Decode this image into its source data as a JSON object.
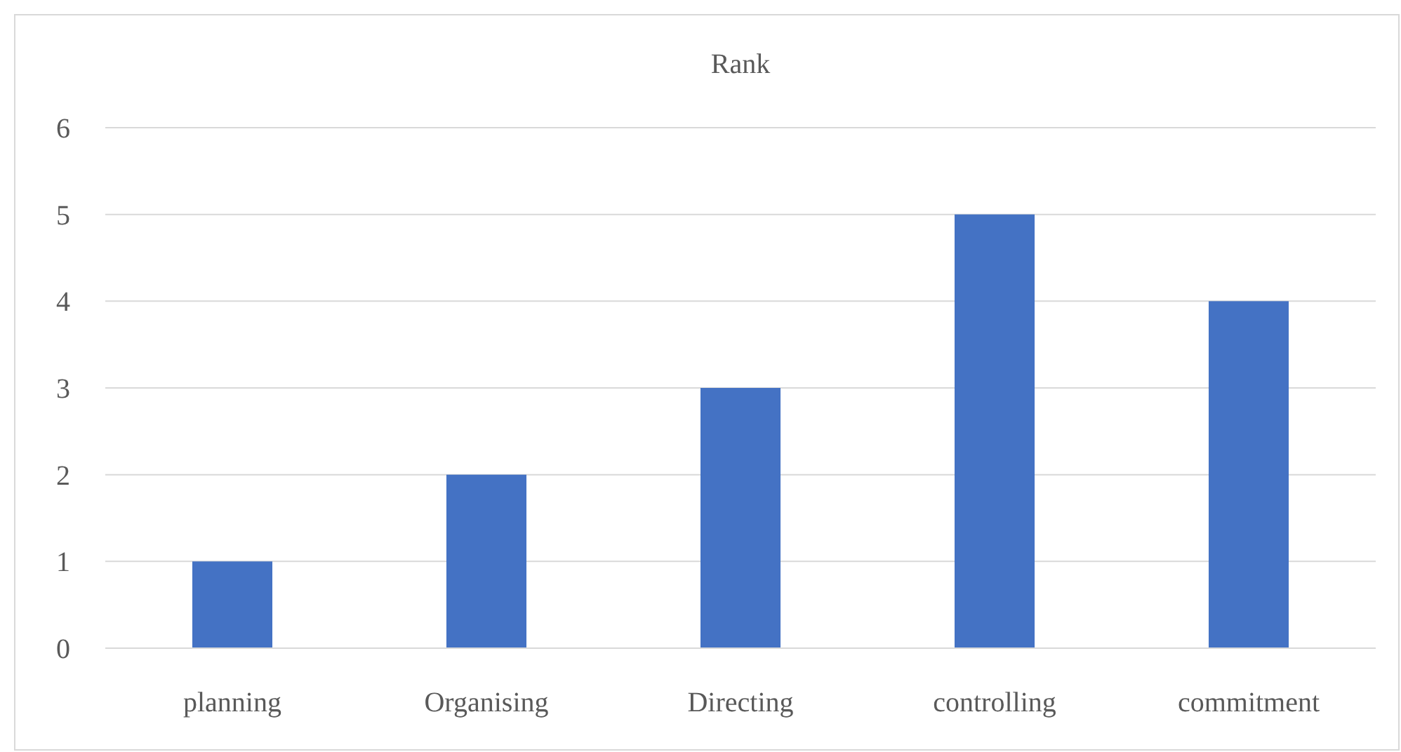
{
  "chart_data": {
    "type": "bar",
    "title": "Rank",
    "categories": [
      "planning",
      "Organising",
      "Directing",
      "controlling",
      "commitment"
    ],
    "values": [
      1,
      2,
      3,
      5,
      4
    ],
    "color": "#4472c4",
    "ylim": [
      0,
      6
    ],
    "yticks": [
      0,
      1,
      2,
      3,
      4,
      5,
      6
    ],
    "grid": "y"
  }
}
